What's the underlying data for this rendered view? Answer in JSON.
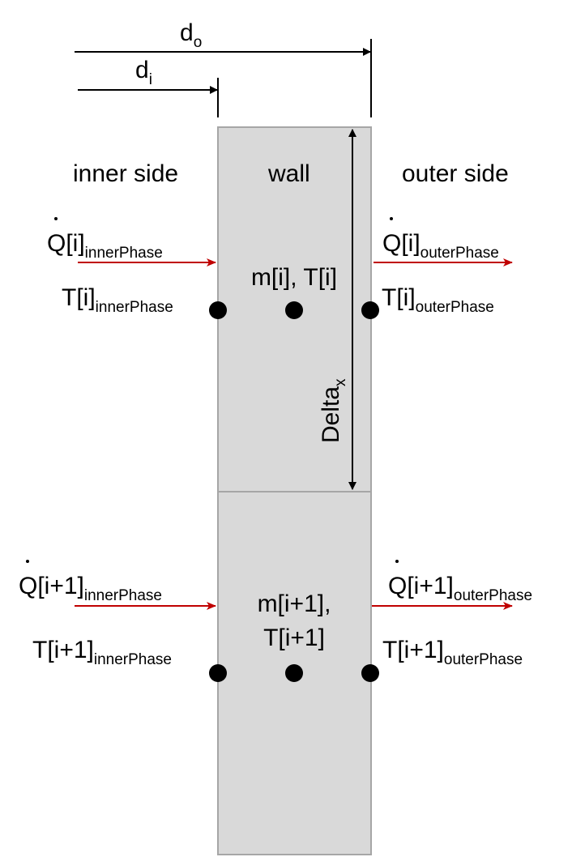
{
  "colors": {
    "cell_fill": "#d9d9d9",
    "cell_stroke": "#a6a6a6",
    "heat_arrow": "#c00000",
    "dim_arrow": "#000000"
  },
  "dimensions": {
    "d_outer": {
      "base": "d",
      "sub": "o"
    },
    "d_inner": {
      "base": "d",
      "sub": "i"
    },
    "delta": {
      "base": "Delta",
      "sub": "x"
    }
  },
  "headers": {
    "inner": "inner side",
    "wall": "wall",
    "outer": "outer side"
  },
  "cells": [
    {
      "q_inner": {
        "base": "Q[i]",
        "sub": "innerPhase"
      },
      "q_outer": {
        "base": "Q[i]",
        "sub": "outerPhase"
      },
      "t_inner": {
        "base": "T[i]",
        "sub": "innerPhase"
      },
      "t_outer": {
        "base": "T[i]",
        "sub": "outerPhase"
      },
      "state": "m[i], T[i]"
    },
    {
      "q_inner": {
        "base": "Q[i+1]",
        "sub": "innerPhase"
      },
      "q_outer": {
        "base": "Q[i+1]",
        "sub": "outerPhase"
      },
      "t_inner": {
        "base": "T[i+1]",
        "sub": "innerPhase"
      },
      "t_outer": {
        "base": "T[i+1]",
        "sub": "outerPhase"
      },
      "state_line1": "m[i+1],",
      "state_line2": "T[i+1]"
    }
  ]
}
